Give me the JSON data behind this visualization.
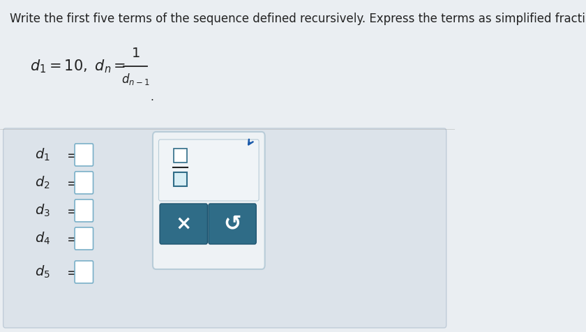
{
  "bg_top": "#eaeef2",
  "bg_bottom": "#dde4eb",
  "panel_bg": "#dce3ea",
  "panel_border": "#c0ccd8",
  "title_text": "Write the first five terms of the sequence defined recursively. Express the terms as simplified fracti",
  "title_fontsize": 12,
  "terms": [
    "$d_1$",
    "$d_2$",
    "$d_3$",
    "$d_4$",
    "$d_5$"
  ],
  "box_color": "#ffffff",
  "box_border": "#7ab0c8",
  "popup_bg": "#eef2f5",
  "popup_border": "#b8ccd8",
  "button_color": "#2f6c87",
  "button_border": "#1e5470",
  "frac_box_color": "#ffffff",
  "frac_box_border": "#2f6c87",
  "cursor_color": "#1a5aaa",
  "text_color": "#222222",
  "line_color": "#999999"
}
